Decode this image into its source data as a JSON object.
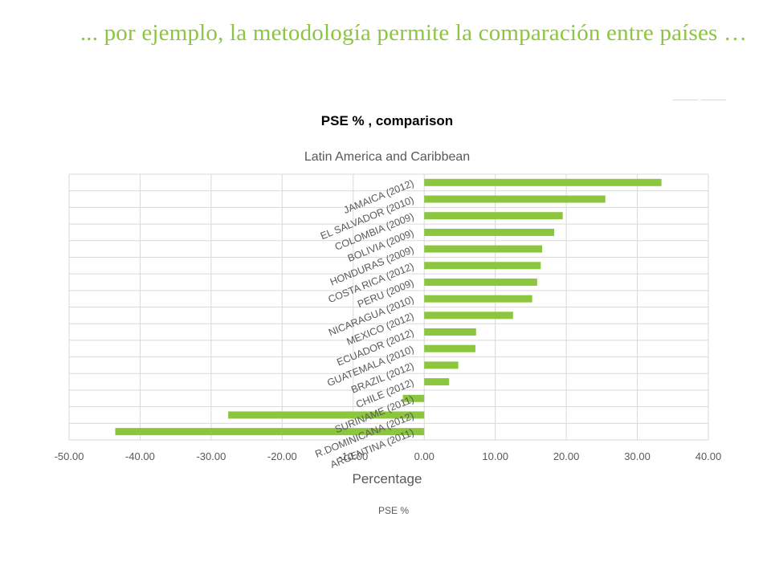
{
  "slide": {
    "title": "... por ejemplo, la metodología permite la comparación entre países …",
    "title_color": "#8cc63f"
  },
  "chart_data": {
    "type": "bar",
    "orientation": "horizontal",
    "title": "PSE % , comparison",
    "subtitle": "Latin America and Caribbean",
    "xlabel": "Percentage",
    "ylabel": "",
    "legend": "PSE %",
    "legend_position": "bottom",
    "bar_color": "#8cc63f",
    "grid": true,
    "xlim": [
      -50,
      40
    ],
    "xticks": [
      -50,
      -40,
      -30,
      -20,
      -10,
      0,
      10,
      20,
      30,
      40
    ],
    "xtick_labels": [
      "-50.00",
      "-40.00",
      "-30.00",
      "-20.00",
      "-10.00",
      "0.00",
      "10.00",
      "20.00",
      "30.00",
      "40.00"
    ],
    "categories": [
      "JAMAICA (2012)",
      "EL SALVADOR (2010)",
      "COLOMBIA (2009)",
      "BOLIVIA (2009)",
      "HONDURAS (2009)",
      "COSTA RICA (2012)",
      "PERU (2009)",
      "NICARAGUA (2010)",
      "MEXICO (2012)",
      "ECUADOR (2012)",
      "GUATEMALA (2010)",
      "BRAZIL (2012)",
      "CHILE (2012)",
      "SURINAME (2011)",
      "R.DOMINICANA (2012)",
      "ARGENTINA (2011)"
    ],
    "values": [
      33.4,
      25.5,
      19.5,
      18.3,
      16.6,
      16.4,
      15.9,
      15.2,
      12.5,
      7.3,
      7.2,
      4.8,
      3.5,
      -3.0,
      -27.6,
      -43.5
    ]
  }
}
